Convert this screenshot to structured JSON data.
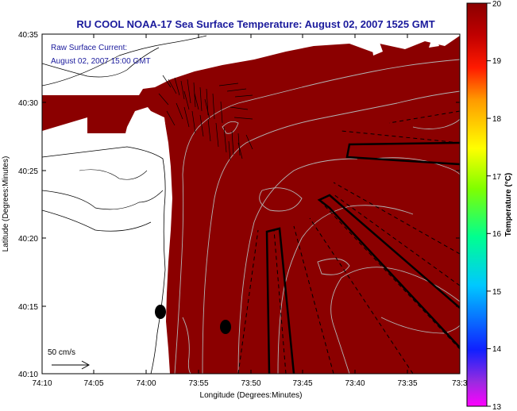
{
  "title": "RU COOL  NOAA-17  Sea Surface Temperature:  August 02, 2007 1525 GMT",
  "annotation": {
    "line1": "Raw Surface Current:",
    "line2": "August 02, 2007 15:00 GMT",
    "scale_label": "50 cm/s"
  },
  "axes": {
    "xlabel": "Longitude (Degrees:Minutes)",
    "ylabel": "Latitude (Degrees:Minutes)",
    "x_ticks": [
      "74:10",
      "74:05",
      "74:00",
      "73:55",
      "73:50",
      "73:45",
      "73:40",
      "73:35",
      "73:3"
    ],
    "y_ticks": [
      "40:35",
      "40:30",
      "40:25",
      "40:20",
      "40:15",
      "40:10"
    ]
  },
  "colorbar": {
    "label": "Temperature (°C)",
    "ticks": [
      "20",
      "19",
      "18",
      "17",
      "16",
      "15",
      "14",
      "13"
    ],
    "min": 13,
    "max": 20
  },
  "colors": {
    "sst_field": "#8b0000",
    "land": "#ffffff",
    "title_text": "#1a1a9c"
  }
}
